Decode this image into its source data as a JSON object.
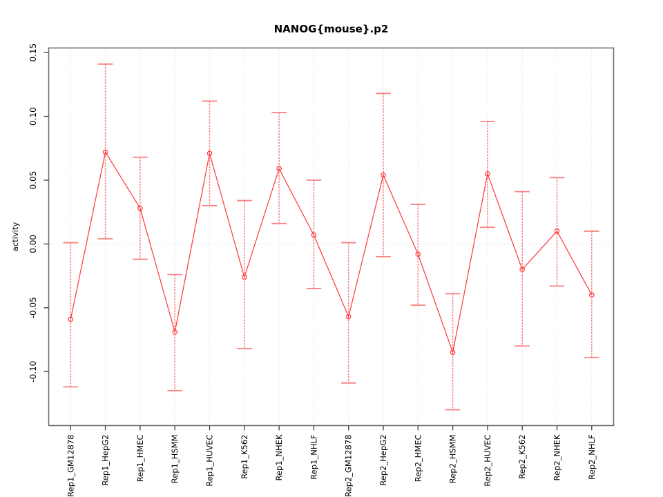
{
  "chart_data": {
    "type": "line",
    "title": "NANOG{mouse}.p2",
    "xlabel": "",
    "ylabel": "activity",
    "legend": "none",
    "errorbars": true,
    "categories": [
      "Rep1_GM12878",
      "Rep1_HepG2",
      "Rep1_HMEC",
      "Rep1_HSMM",
      "Rep1_HUVEC",
      "Rep1_K562",
      "Rep1_NHEK",
      "Rep1_NHLF",
      "Rep2_GM12878",
      "Rep2_HepG2",
      "Rep2_HMEC",
      "Rep2_HSMM",
      "Rep2_HUVEC",
      "Rep2_K562",
      "Rep2_NHEK",
      "Rep2_NHLF"
    ],
    "series": [
      {
        "name": "activity",
        "values": [
          -0.059,
          0.072,
          0.028,
          -0.069,
          0.071,
          -0.026,
          0.059,
          0.007,
          -0.057,
          0.054,
          -0.008,
          -0.085,
          0.055,
          -0.02,
          0.01,
          -0.04
        ],
        "upper": [
          0.001,
          0.141,
          0.068,
          -0.024,
          0.112,
          0.034,
          0.103,
          0.05,
          0.001,
          0.118,
          0.031,
          -0.039,
          0.096,
          0.041,
          0.052,
          0.01
        ],
        "lower": [
          -0.112,
          0.004,
          -0.012,
          -0.115,
          0.03,
          -0.082,
          0.016,
          -0.035,
          -0.109,
          -0.01,
          -0.048,
          -0.13,
          0.013,
          -0.08,
          -0.033,
          -0.089
        ]
      }
    ],
    "y_ticks": [
      {
        "value": 0.15,
        "label": "0.15"
      },
      {
        "value": 0.1,
        "label": "0.10"
      },
      {
        "value": 0.05,
        "label": "0.05"
      },
      {
        "value": 0.0,
        "label": "0.00"
      },
      {
        "value": -0.05,
        "label": "-0.05"
      },
      {
        "value": -0.1,
        "label": "-0.10"
      }
    ],
    "ylim": [
      -0.143,
      0.154
    ],
    "grid": {
      "vertical_per_category": true,
      "horizontal_zero_line": true,
      "style": "dotted"
    },
    "x_tick_rotation": 90,
    "colors": {
      "line": "#ff3b3b",
      "point": "#ff3b3b",
      "errorbar": "#fa7b7b",
      "grid": "#dadada",
      "frame": "#6e6e6e",
      "tick": "#4a4a4a",
      "text": "#000000"
    }
  }
}
